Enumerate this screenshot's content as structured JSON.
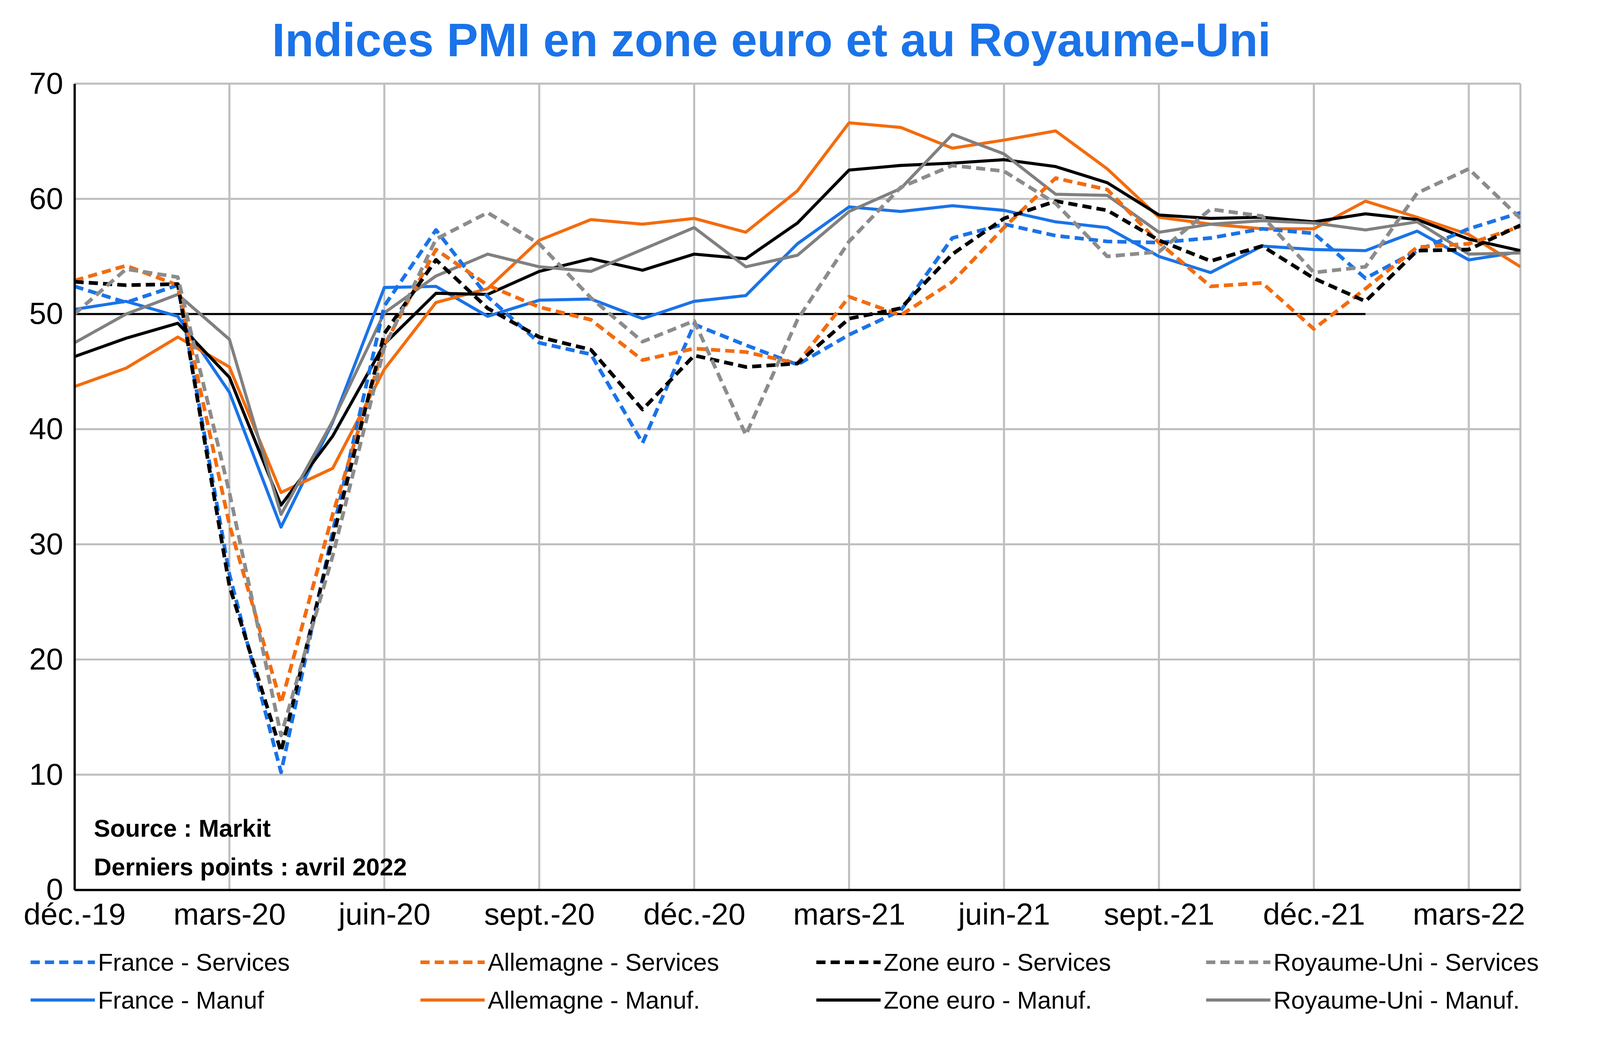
{
  "chart_data": {
    "type": "line",
    "title": "Indices PMI en zone euro et au Royaume-Uni",
    "annotations": [
      "Source : Markit",
      "Derniers points : avril 2022"
    ],
    "categories": [
      "déc.-19",
      null,
      null,
      "mars-20",
      null,
      null,
      "juin-20",
      null,
      null,
      "sept.-20",
      null,
      null,
      "déc.-20",
      null,
      null,
      "mars-21",
      null,
      null,
      "juin-21",
      null,
      null,
      "sept.-21",
      null,
      null,
      "déc.-21",
      null,
      null,
      "mars-22",
      null
    ],
    "ylim": [
      0,
      70
    ],
    "yticks": [
      0,
      10,
      20,
      30,
      40,
      50,
      60,
      70
    ],
    "grid": true,
    "legend": "bottom",
    "threshold": {
      "color": "#000000",
      "values": [
        50,
        50,
        50,
        50,
        50,
        50,
        50,
        50,
        50,
        50,
        50,
        50,
        50,
        50,
        50,
        50,
        50,
        50,
        50,
        50,
        50,
        50,
        50,
        50,
        50,
        50,
        null,
        null,
        null
      ]
    },
    "series": [
      {
        "name": "France - Services",
        "color": "#1A73E8",
        "line_style": "dashed",
        "values": [
          52.4,
          51.0,
          52.5,
          27.4,
          10.2,
          31.1,
          50.7,
          57.3,
          51.5,
          47.5,
          46.5,
          38.8,
          49.1,
          47.3,
          45.6,
          48.2,
          50.3,
          56.6,
          57.8,
          56.8,
          56.3,
          56.2,
          56.6,
          57.4,
          57.0,
          53.1,
          55.5,
          57.4,
          58.8
        ]
      },
      {
        "name": "Allemagne - Services",
        "color": "#F36C0E",
        "line_style": "dashed",
        "values": [
          52.9,
          54.2,
          52.5,
          31.7,
          16.2,
          32.6,
          47.3,
          55.6,
          52.5,
          50.6,
          49.5,
          46.0,
          47.0,
          46.7,
          45.7,
          51.5,
          49.9,
          52.8,
          57.5,
          61.8,
          60.8,
          56.2,
          52.4,
          52.7,
          48.7,
          52.2,
          55.8,
          56.1,
          57.6
        ]
      },
      {
        "name": "Zone euro - Services",
        "color": "#000000",
        "line_style": "dashed",
        "values": [
          52.8,
          52.5,
          52.6,
          26.4,
          12.0,
          30.5,
          48.3,
          54.7,
          50.5,
          48.0,
          46.9,
          41.7,
          46.4,
          45.4,
          45.7,
          49.6,
          50.5,
          55.2,
          58.3,
          59.8,
          59.0,
          56.4,
          54.6,
          55.9,
          53.1,
          51.1,
          55.5,
          55.6,
          57.7
        ]
      },
      {
        "name": "Royaume-Uni - Services",
        "color": "#8C8C8C",
        "line_style": "dashed",
        "values": [
          50.0,
          53.9,
          53.2,
          34.5,
          13.4,
          29.0,
          47.1,
          56.5,
          58.8,
          56.1,
          51.4,
          47.6,
          49.4,
          39.5,
          49.5,
          56.3,
          61.0,
          62.9,
          62.4,
          59.6,
          55.0,
          55.4,
          59.1,
          58.5,
          53.6,
          54.1,
          60.5,
          62.6,
          58.3
        ]
      },
      {
        "name": "France - Manuf",
        "color": "#1A73E8",
        "line_style": "solid",
        "values": [
          50.4,
          51.1,
          49.8,
          43.2,
          31.5,
          40.6,
          52.3,
          52.4,
          49.8,
          51.2,
          51.3,
          49.6,
          51.1,
          51.6,
          56.1,
          59.3,
          58.9,
          59.4,
          59.0,
          58.0,
          57.5,
          55.0,
          53.6,
          55.9,
          55.6,
          55.5,
          57.2,
          54.7,
          55.4
        ]
      },
      {
        "name": "Allemagne - Manuf.",
        "color": "#F36C0E",
        "line_style": "solid",
        "values": [
          43.7,
          45.3,
          48.0,
          45.4,
          34.5,
          36.6,
          45.2,
          51.0,
          52.2,
          56.4,
          58.2,
          57.8,
          58.3,
          57.1,
          60.7,
          66.6,
          66.2,
          64.4,
          65.1,
          65.9,
          62.6,
          58.4,
          57.8,
          57.4,
          57.4,
          59.8,
          58.4,
          56.9,
          54.1
        ]
      },
      {
        "name": "Zone euro - Manuf.",
        "color": "#000000",
        "line_style": "solid",
        "values": [
          46.3,
          47.9,
          49.2,
          44.5,
          33.4,
          39.4,
          47.4,
          51.8,
          51.7,
          53.7,
          54.8,
          53.8,
          55.2,
          54.8,
          57.9,
          62.5,
          62.9,
          63.1,
          63.4,
          62.8,
          61.4,
          58.6,
          58.3,
          58.4,
          58.0,
          58.7,
          58.2,
          56.5,
          55.5
        ]
      },
      {
        "name": "Royaume-Uni - Manuf.",
        "color": "#808080",
        "line_style": "solid",
        "values": [
          47.5,
          50.0,
          51.7,
          47.8,
          32.6,
          40.7,
          50.1,
          53.3,
          55.2,
          54.1,
          53.7,
          55.6,
          57.5,
          54.1,
          55.1,
          58.9,
          60.9,
          65.6,
          63.9,
          60.4,
          60.3,
          57.1,
          57.8,
          58.1,
          57.9,
          57.3,
          58.0,
          55.2,
          55.3
        ]
      }
    ]
  }
}
